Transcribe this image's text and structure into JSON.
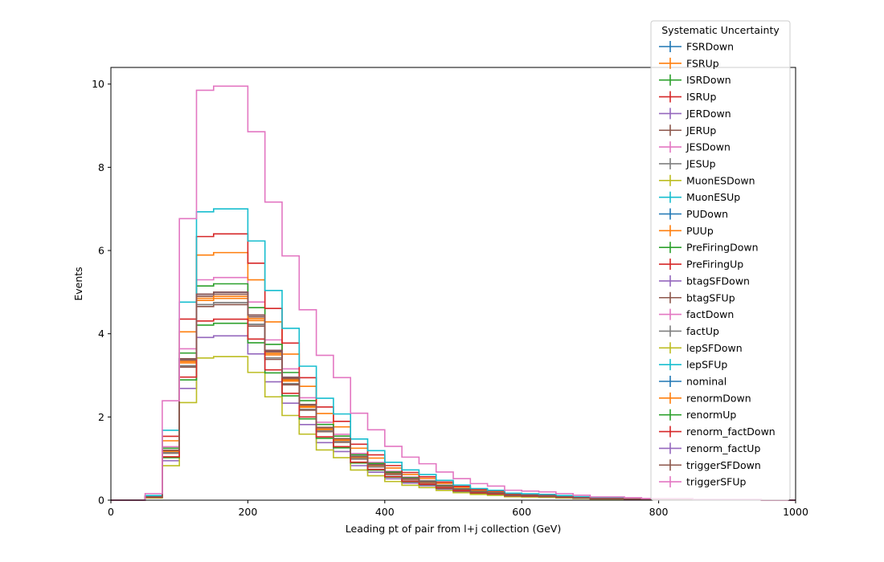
{
  "chart_data": {
    "type": "histogram-step",
    "title": "",
    "xlabel": "Leading pt of pair from l+j collection (GeV)",
    "ylabel": "Events",
    "xlim": [
      0,
      1000
    ],
    "ylim": [
      0,
      10.4
    ],
    "xticks": [
      0,
      200,
      400,
      600,
      800,
      1000
    ],
    "yticks": [
      0,
      2,
      4,
      6,
      8,
      10
    ],
    "grid": false,
    "legend": {
      "title": "Systematic Uncertainty",
      "placement": "top-right"
    },
    "bin_edges": [
      0,
      25,
      50,
      75,
      100,
      125,
      150,
      175,
      200,
      225,
      250,
      275,
      300,
      325,
      350,
      375,
      400,
      425,
      450,
      475,
      500,
      525,
      550,
      575,
      600,
      625,
      650,
      675,
      700,
      725,
      750,
      775,
      800,
      825,
      850,
      875,
      900,
      925,
      950,
      975,
      1000
    ],
    "series": [
      {
        "name": "FSRDown",
        "color": "#1f77b4",
        "scale": 1.0
      },
      {
        "name": "FSRUp",
        "color": "#ff7f0e",
        "scale": 0.97
      },
      {
        "name": "ISRDown",
        "color": "#2ca02c",
        "scale": 1.0
      },
      {
        "name": "ISRUp",
        "color": "#d62728",
        "scale": 1.0
      },
      {
        "name": "JERDown",
        "color": "#9467bd",
        "scale": 1.0
      },
      {
        "name": "JERUp",
        "color": "#8c564b",
        "scale": 0.99
      },
      {
        "name": "JESDown",
        "color": "#e377c2",
        "scale": 1.07
      },
      {
        "name": "JESUp",
        "color": "#7f7f7f",
        "scale": 0.95
      },
      {
        "name": "MuonESDown",
        "color": "#bcbd22",
        "scale": 1.0
      },
      {
        "name": "MuonESUp",
        "color": "#17becf",
        "scale": 1.0
      },
      {
        "name": "PUDown",
        "color": "#1f77b4",
        "scale": 1.0
      },
      {
        "name": "PUUp",
        "color": "#ff7f0e",
        "scale": 1.19
      },
      {
        "name": "PreFiringDown",
        "color": "#2ca02c",
        "scale": 1.04
      },
      {
        "name": "PreFiringUp",
        "color": "#d62728",
        "scale": 1.28
      },
      {
        "name": "btagSFDown",
        "color": "#9467bd",
        "scale": 0.79
      },
      {
        "name": "btagSFUp",
        "color": "#8c564b",
        "scale": 0.94
      },
      {
        "name": "factDown",
        "color": "#e377c2",
        "scale": 1.0
      },
      {
        "name": "factUp",
        "color": "#7f7f7f",
        "scale": 0.95
      },
      {
        "name": "lepSFDown",
        "color": "#bcbd22",
        "scale": 0.69
      },
      {
        "name": "lepSFUp",
        "color": "#17becf",
        "scale": 1.4
      },
      {
        "name": "nominal",
        "color": "#1f77b4",
        "scale": 1.0
      },
      {
        "name": "renormDown",
        "color": "#ff7f0e",
        "scale": 0.98
      },
      {
        "name": "renormUp",
        "color": "#2ca02c",
        "scale": 0.85
      },
      {
        "name": "renorm_factDown",
        "color": "#d62728",
        "scale": 0.87
      },
      {
        "name": "renorm_factUp",
        "color": "#9467bd",
        "scale": 1.0
      },
      {
        "name": "triggerSFDown",
        "color": "#8c564b",
        "scale": 1.0
      },
      {
        "name": "triggerSFUp",
        "color": "#e377c2",
        "scale": 1.99
      }
    ],
    "base_values": [
      0.0,
      0.0,
      0.08,
      1.2,
      3.4,
      4.95,
      5.0,
      5.0,
      4.45,
      3.6,
      2.95,
      2.3,
      1.75,
      1.48,
      1.05,
      0.85,
      0.65,
      0.52,
      0.44,
      0.34,
      0.26,
      0.2,
      0.17,
      0.12,
      0.11,
      0.1,
      0.08,
      0.06,
      0.04,
      0.04,
      0.03,
      0.02,
      0.02,
      0.02,
      0.01,
      0.01,
      0.01,
      0.01,
      0.0,
      0.0
    ]
  }
}
